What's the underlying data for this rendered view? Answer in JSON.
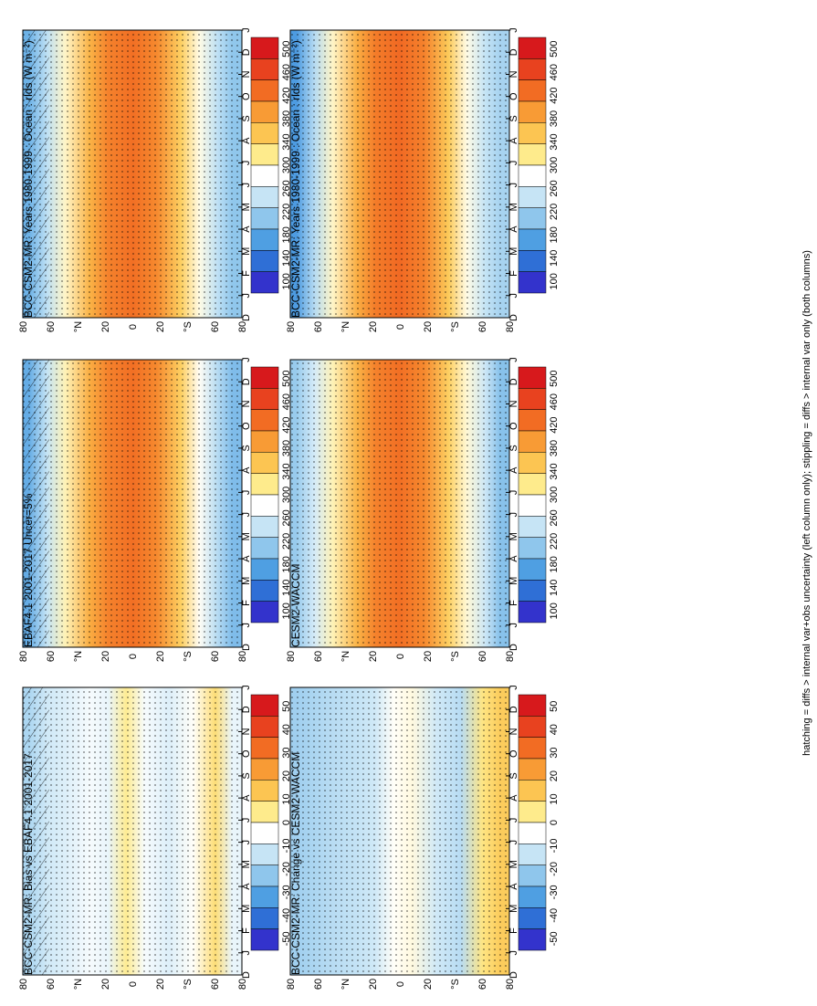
{
  "figure": {
    "footnote": "hatching = diffs > internal var+obs uncertainty (left column only); stippling = diffs > internal var only (both columns)"
  },
  "chart_data": [
    {
      "id": "p1",
      "type": "heatmap",
      "title": "BCC-CSM2-MR: Years 1980-1999 : Ocean : rlds (W m⁻²)",
      "xlabel": "",
      "ylabel": "",
      "x_ticks": [
        "D",
        "J",
        "F",
        "M",
        "A",
        "M",
        "J",
        "J",
        "A",
        "S",
        "O",
        "N",
        "D",
        "J"
      ],
      "y_ticks": [
        "80",
        "60",
        "°N",
        "20",
        "0",
        "20",
        "°S",
        "60",
        "80"
      ],
      "colorbar_ticks": [
        "500",
        "460",
        "420",
        "380",
        "340",
        "300",
        "260",
        "220",
        "180",
        "140",
        "100"
      ],
      "lat_profile": [
        {
          "lat": 85,
          "value": 190
        },
        {
          "lat": 70,
          "value": 240
        },
        {
          "lat": 55,
          "value": 300
        },
        {
          "lat": 35,
          "value": 370
        },
        {
          "lat": 20,
          "value": 410
        },
        {
          "lat": 0,
          "value": 425
        },
        {
          "lat": -20,
          "value": 405
        },
        {
          "lat": -40,
          "value": 345
        },
        {
          "lat": -55,
          "value": 290
        },
        {
          "lat": -70,
          "value": 240
        },
        {
          "lat": -82,
          "value": 210
        }
      ],
      "hatching": true,
      "stippling": true
    },
    {
      "id": "p2",
      "type": "heatmap",
      "title": "BCC-CSM2-MR: Years 1980-1999 : Ocean : rlds (W m⁻²)",
      "xlabel": "",
      "ylabel": "",
      "x_ticks": [
        "D",
        "J",
        "F",
        "M",
        "A",
        "M",
        "J",
        "J",
        "A",
        "S",
        "O",
        "N",
        "D",
        "J"
      ],
      "y_ticks": [
        "80",
        "60",
        "°N",
        "20",
        "0",
        "20",
        "°S",
        "60",
        "80"
      ],
      "colorbar_ticks": [
        "500",
        "460",
        "420",
        "380",
        "340",
        "300",
        "260",
        "220",
        "180",
        "140",
        "100"
      ],
      "lat_profile": [
        {
          "lat": 85,
          "value": 170
        },
        {
          "lat": 70,
          "value": 235
        },
        {
          "lat": 55,
          "value": 300
        },
        {
          "lat": 35,
          "value": 375
        },
        {
          "lat": 20,
          "value": 415
        },
        {
          "lat": 0,
          "value": 430
        },
        {
          "lat": -20,
          "value": 410
        },
        {
          "lat": -40,
          "value": 350
        },
        {
          "lat": -55,
          "value": 290
        },
        {
          "lat": -70,
          "value": 245
        },
        {
          "lat": -82,
          "value": 225
        }
      ],
      "hatching": false,
      "stippling": true
    },
    {
      "id": "p3",
      "type": "heatmap",
      "title": "EBAF4.1 2001-2017 Uncer=5%",
      "xlabel": "",
      "ylabel": "",
      "x_ticks": [
        "D",
        "J",
        "F",
        "M",
        "A",
        "M",
        "J",
        "J",
        "A",
        "S",
        "O",
        "N",
        "D",
        "J"
      ],
      "y_ticks": [
        "80",
        "60",
        "°N",
        "20",
        "0",
        "20",
        "°S",
        "60",
        "80"
      ],
      "colorbar_ticks": [
        "500",
        "460",
        "420",
        "380",
        "340",
        "300",
        "260",
        "220",
        "180",
        "140",
        "100"
      ],
      "lat_profile": [
        {
          "lat": 85,
          "value": 185
        },
        {
          "lat": 70,
          "value": 245
        },
        {
          "lat": 55,
          "value": 305
        },
        {
          "lat": 35,
          "value": 375
        },
        {
          "lat": 20,
          "value": 410
        },
        {
          "lat": 0,
          "value": 425
        },
        {
          "lat": -20,
          "value": 405
        },
        {
          "lat": -40,
          "value": 345
        },
        {
          "lat": -55,
          "value": 285
        },
        {
          "lat": -70,
          "value": 235
        },
        {
          "lat": -82,
          "value": 200
        }
      ],
      "hatching": true,
      "stippling": true
    },
    {
      "id": "p4",
      "type": "heatmap",
      "title": "CESM2-WACCM",
      "xlabel": "",
      "ylabel": "",
      "x_ticks": [
        "D",
        "J",
        "F",
        "M",
        "A",
        "M",
        "J",
        "J",
        "A",
        "S",
        "O",
        "N",
        "D",
        "J"
      ],
      "y_ticks": [
        "80",
        "60",
        "°N",
        "20",
        "0",
        "20",
        "°S",
        "60",
        "80"
      ],
      "colorbar_ticks": [
        "500",
        "460",
        "420",
        "380",
        "340",
        "300",
        "260",
        "220",
        "180",
        "140",
        "100"
      ],
      "lat_profile": [
        {
          "lat": 85,
          "value": 215
        },
        {
          "lat": 70,
          "value": 255
        },
        {
          "lat": 55,
          "value": 305
        },
        {
          "lat": 35,
          "value": 370
        },
        {
          "lat": 20,
          "value": 410
        },
        {
          "lat": 0,
          "value": 425
        },
        {
          "lat": -20,
          "value": 405
        },
        {
          "lat": -40,
          "value": 345
        },
        {
          "lat": -55,
          "value": 295
        },
        {
          "lat": -70,
          "value": 250
        },
        {
          "lat": -82,
          "value": 205
        }
      ],
      "hatching": false,
      "stippling": true
    },
    {
      "id": "p5",
      "type": "heatmap",
      "title": "BCC-CSM2-MR: Bias vs EBAF4.1 2001-2017",
      "xlabel": "",
      "ylabel": "",
      "x_ticks": [
        "D",
        "J",
        "F",
        "M",
        "A",
        "M",
        "J",
        "J",
        "A",
        "S",
        "O",
        "N",
        "D",
        "J"
      ],
      "y_ticks": [
        "80",
        "60",
        "°N",
        "20",
        "0",
        "20",
        "°S",
        "60",
        "80"
      ],
      "colorbar_ticks": [
        "50",
        "40",
        "30",
        "20",
        "10",
        "0",
        "-10",
        "-20",
        "-30",
        "-40",
        "-50"
      ],
      "lat_profile": [
        {
          "lat": 85,
          "value": -18
        },
        {
          "lat": 70,
          "value": -12
        },
        {
          "lat": 55,
          "value": -10
        },
        {
          "lat": 35,
          "value": -6
        },
        {
          "lat": 20,
          "value": -8
        },
        {
          "lat": 5,
          "value": 4
        },
        {
          "lat": -10,
          "value": -6
        },
        {
          "lat": -30,
          "value": -10
        },
        {
          "lat": -50,
          "value": -4
        },
        {
          "lat": -68,
          "value": 8
        },
        {
          "lat": -82,
          "value": -8
        }
      ],
      "hatching": true,
      "stippling": true
    },
    {
      "id": "p6",
      "type": "heatmap",
      "title": "BCC-CSM2-MR: Change vs CESM2-WACCM",
      "xlabel": "",
      "ylabel": "",
      "x_ticks": [
        "D",
        "J",
        "F",
        "M",
        "A",
        "M",
        "J",
        "J",
        "A",
        "S",
        "O",
        "N",
        "D",
        "J"
      ],
      "y_ticks": [
        "80",
        "60",
        "°N",
        "20",
        "0",
        "20",
        "°S",
        "60",
        "80"
      ],
      "colorbar_ticks": [
        "50",
        "40",
        "30",
        "20",
        "10",
        "0",
        "-10",
        "-20",
        "-30",
        "-40",
        "-50"
      ],
      "lat_profile": [
        {
          "lat": 85,
          "value": -20
        },
        {
          "lat": 70,
          "value": -18
        },
        {
          "lat": 55,
          "value": -16
        },
        {
          "lat": 35,
          "value": -14
        },
        {
          "lat": 20,
          "value": -12
        },
        {
          "lat": 5,
          "value": -4
        },
        {
          "lat": -10,
          "value": -2
        },
        {
          "lat": -30,
          "value": -12
        },
        {
          "lat": -50,
          "value": -16
        },
        {
          "lat": -68,
          "value": 6
        },
        {
          "lat": -82,
          "value": 12
        }
      ],
      "hatching": false,
      "stippling": true
    }
  ]
}
